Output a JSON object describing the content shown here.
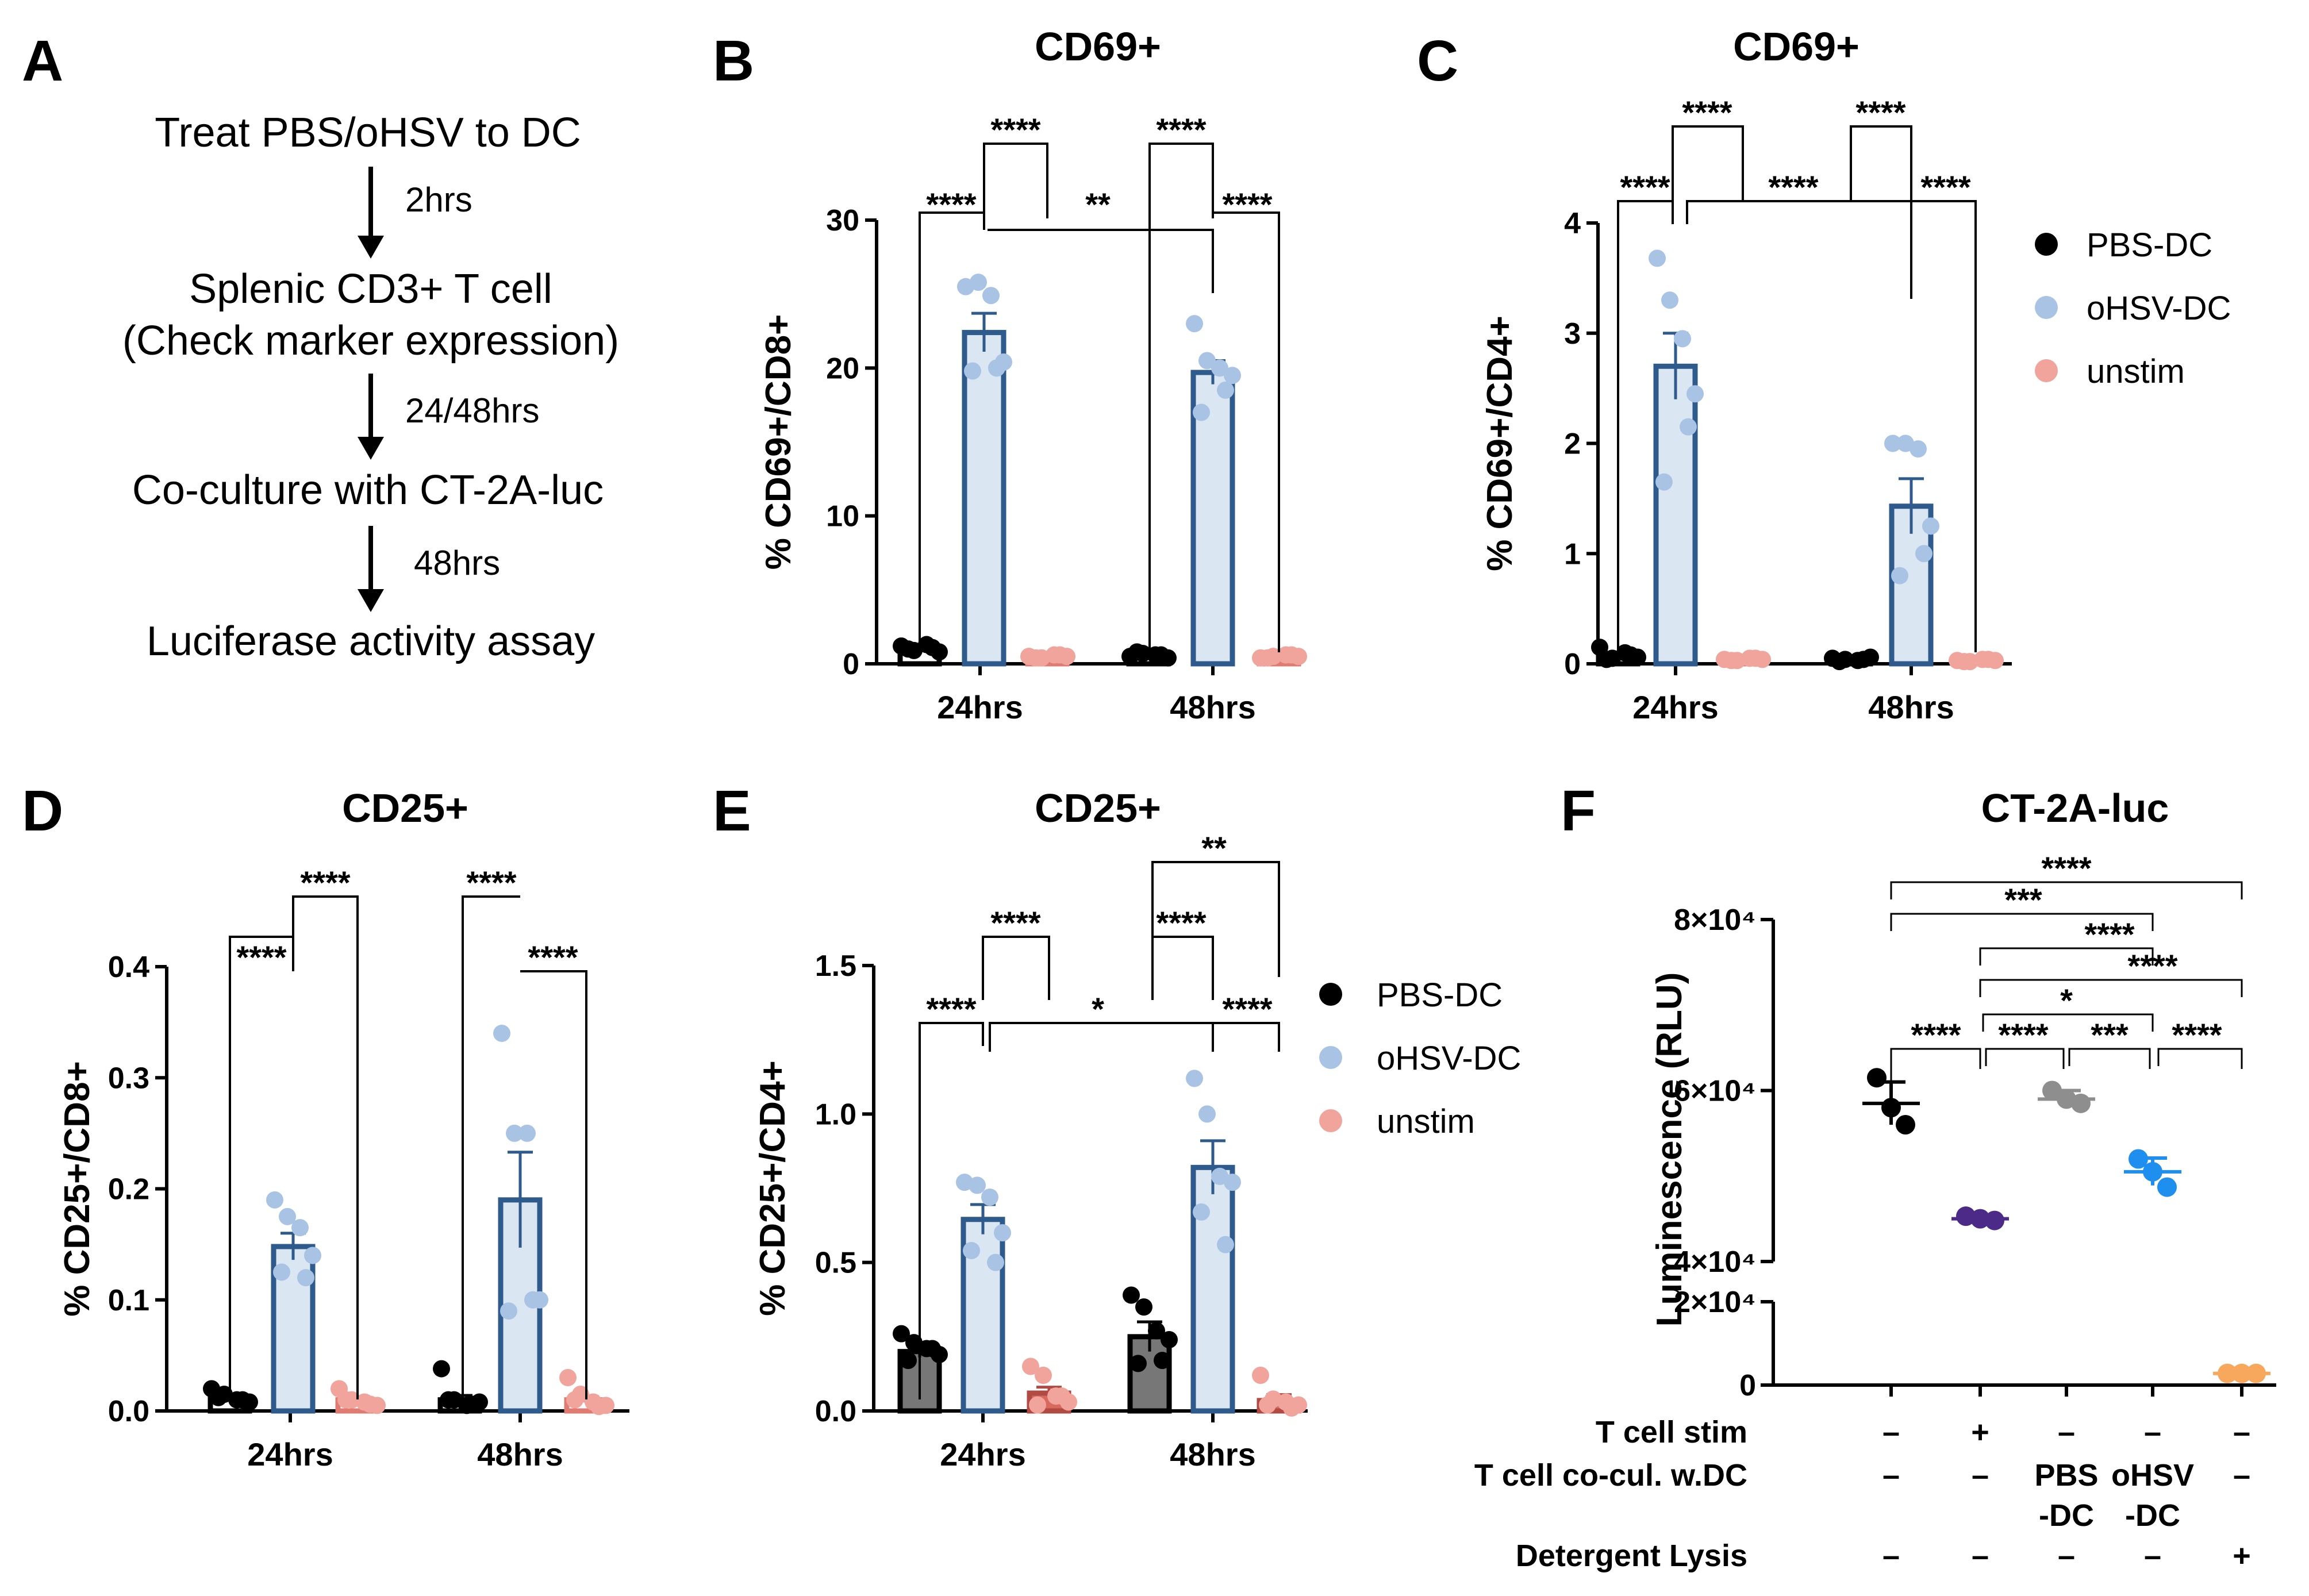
{
  "panel_a": {
    "label": "A",
    "steps": [
      "Treat PBS/oHSV to DC",
      "Splenic CD3+ T cell",
      "(Check marker expression)",
      "Co-culture with CT-2A-luc",
      "Luciferase activity assay"
    ],
    "arrows": [
      "2hrs",
      "24/48hrs",
      "48hrs"
    ]
  },
  "legend": {
    "items": [
      {
        "label": "PBS-DC",
        "color": "#000000"
      },
      {
        "label": "oHSV-DC",
        "color": "#a9c3e4"
      },
      {
        "label": "unstim",
        "color": "#f0a49c"
      }
    ]
  },
  "chart_data": [
    {
      "id": "B",
      "type": "bar",
      "title": "CD69+",
      "ylabel": "% CD69+/CD8+",
      "ylim": [
        0,
        30
      ],
      "yticks": [
        "0",
        "10",
        "20",
        "30"
      ],
      "categories": [
        "24hrs",
        "48hrs"
      ],
      "series": [
        {
          "name": "PBS-DC",
          "values": [
            1.0,
            0.6
          ],
          "sem": [
            0.1,
            0.1
          ]
        },
        {
          "name": "oHSV-DC",
          "values": [
            22.4,
            19.7
          ],
          "sem": [
            1.3,
            0.8
          ]
        },
        {
          "name": "unstim",
          "values": [
            0.5,
            0.5
          ],
          "sem": [
            0.05,
            0.05
          ]
        }
      ],
      "points": [
        [
          [
            1.2,
            0.9,
            1.3,
            0.8,
            1.0,
            1.1
          ],
          [
            0.5,
            0.7,
            0.6,
            0.4,
            0.8,
            0.6
          ]
        ],
        [
          [
            25.5,
            25.8,
            24.9,
            20.4,
            19.8,
            20.0
          ],
          [
            23.0,
            20.5,
            20.0,
            19.5,
            17.0,
            18.5
          ]
        ],
        [
          [
            0.5,
            0.4,
            0.6,
            0.5,
            0.4,
            0.6
          ],
          [
            0.4,
            0.5,
            0.6,
            0.5,
            0.4,
            0.6
          ]
        ]
      ],
      "brackets": [
        "****",
        "****",
        "**",
        "****",
        "****"
      ]
    },
    {
      "id": "C",
      "type": "bar",
      "title": "CD69+",
      "ylabel": "% CD69+/CD4+",
      "ylim": [
        0,
        4
      ],
      "yticks": [
        "0",
        "1",
        "2",
        "3",
        "4"
      ],
      "categories": [
        "24hrs",
        "48hrs"
      ],
      "series": [
        {
          "name": "PBS-DC",
          "values": [
            0.08,
            0.04
          ],
          "sem": [
            0.02,
            0.01
          ]
        },
        {
          "name": "oHSV-DC",
          "values": [
            2.7,
            1.43
          ],
          "sem": [
            0.3,
            0.25
          ]
        },
        {
          "name": "unstim",
          "values": [
            0.04,
            0.03
          ],
          "sem": [
            0.01,
            0.01
          ]
        }
      ],
      "points": [
        [
          [
            0.15,
            0.05,
            0.1,
            0.06,
            0.04,
            0.08
          ],
          [
            0.05,
            0.04,
            0.03,
            0.06,
            0.02,
            0.04
          ]
        ],
        [
          [
            3.68,
            3.3,
            2.95,
            2.45,
            1.65,
            2.15
          ],
          [
            2.0,
            2.0,
            1.95,
            1.25,
            0.8,
            1.0
          ]
        ],
        [
          [
            0.04,
            0.03,
            0.05,
            0.04,
            0.03,
            0.05
          ],
          [
            0.03,
            0.02,
            0.04,
            0.03,
            0.02,
            0.04
          ]
        ]
      ],
      "brackets": [
        "****",
        "****",
        "****",
        "****",
        "****"
      ]
    },
    {
      "id": "D",
      "type": "bar",
      "title": "CD25+",
      "ylabel": "% CD25+/CD8+",
      "ylim": [
        0,
        0.4
      ],
      "yticks": [
        "0.0",
        "0.1",
        "0.2",
        "0.3",
        "0.4"
      ],
      "categories": [
        "24hrs",
        "48hrs"
      ],
      "series": [
        {
          "name": "PBS-DC",
          "values": [
            0.012,
            0.01
          ],
          "sem": [
            0.002,
            0.004
          ]
        },
        {
          "name": "oHSV-DC",
          "values": [
            0.148,
            0.19
          ],
          "sem": [
            0.012,
            0.043
          ]
        },
        {
          "name": "unstim",
          "values": [
            0.01,
            0.01
          ],
          "sem": [
            0.003,
            0.003
          ]
        }
      ],
      "points": [
        [
          [
            0.02,
            0.015,
            0.01,
            0.008,
            0.012,
            0.01
          ],
          [
            0.038,
            0.01,
            0.005,
            0.008,
            0.01,
            0.006
          ]
        ],
        [
          [
            0.19,
            0.175,
            0.165,
            0.14,
            0.125,
            0.12
          ],
          [
            0.34,
            0.25,
            0.25,
            0.1,
            0.09,
            0.1
          ]
        ],
        [
          [
            0.02,
            0.01,
            0.008,
            0.005,
            0.01,
            0.006
          ],
          [
            0.03,
            0.015,
            0.008,
            0.005,
            0.01,
            0.004
          ]
        ]
      ],
      "brackets": [
        "****",
        "****",
        "****",
        "****"
      ]
    },
    {
      "id": "E",
      "type": "bar",
      "title": "CD25+",
      "ylabel": "% CD25+/CD4+",
      "ylim": [
        0,
        1.5
      ],
      "yticks": [
        "0.0",
        "0.5",
        "1.0",
        "1.5"
      ],
      "categories": [
        "24hrs",
        "48hrs"
      ],
      "series": [
        {
          "name": "PBS-DC",
          "values": [
            0.2,
            0.25
          ],
          "sem": [
            0.02,
            0.05
          ]
        },
        {
          "name": "oHSV-DC",
          "values": [
            0.645,
            0.82
          ],
          "sem": [
            0.05,
            0.09
          ]
        },
        {
          "name": "unstim",
          "values": [
            0.06,
            0.035
          ],
          "sem": [
            0.02,
            0.02
          ]
        }
      ],
      "points": [
        [
          [
            0.26,
            0.23,
            0.21,
            0.19,
            0.17,
            0.21
          ],
          [
            0.39,
            0.35,
            0.27,
            0.24,
            0.16,
            0.17
          ]
        ],
        [
          [
            0.77,
            0.76,
            0.72,
            0.6,
            0.54,
            0.5
          ],
          [
            1.12,
            1.0,
            0.79,
            0.77,
            0.67,
            0.56
          ]
        ],
        [
          [
            0.15,
            0.12,
            0.05,
            0.03,
            0.02,
            0.05
          ],
          [
            0.12,
            0.04,
            0.03,
            0.02,
            0.02,
            0.01
          ]
        ]
      ],
      "brackets": [
        "****",
        "****",
        "*",
        "****",
        "****",
        "**"
      ]
    },
    {
      "id": "F",
      "type": "scatter",
      "title": "CT-2A-luc",
      "ylabel": "Luminescence (RLU)",
      "ylim": [
        0,
        80000
      ],
      "yticks": [
        "8×10⁴",
        "6×10⁴",
        "4×10⁴",
        "2×10⁴",
        "0"
      ],
      "groups": [
        {
          "mean": 58500,
          "sem": 2500,
          "points": [
            61500,
            58000,
            56000
          ],
          "color": "#000000"
        },
        {
          "mean": 45000,
          "sem": 300,
          "points": [
            45300,
            45000,
            44800
          ],
          "color": "#4b2a88"
        },
        {
          "mean": 59000,
          "sem": 1000,
          "points": [
            60000,
            59000,
            58500
          ],
          "color": "#8e8e8e"
        },
        {
          "mean": 50500,
          "sem": 1600,
          "points": [
            52000,
            50500,
            48700
          ],
          "color": "#1f8fef"
        },
        {
          "mean": 2800,
          "sem": 100,
          "points": [
            2800,
            2800,
            2800
          ],
          "color": "#f7a85c"
        }
      ],
      "brackets": [
        "****",
        "***",
        "****",
        "****",
        "*",
        "****",
        "****",
        "***",
        "****"
      ],
      "rows": [
        {
          "label": "T cell stim",
          "values": [
            "–",
            "+",
            "–",
            "–",
            "–"
          ]
        },
        {
          "label": "T cell co-cul. w.DC",
          "values": [
            "–",
            "–",
            "PBS",
            "oHSV",
            "–"
          ],
          "values2": [
            "",
            "",
            "-DC",
            "-DC",
            ""
          ]
        },
        {
          "label": "Detergent Lysis",
          "values": [
            "–",
            "–",
            "–",
            "–",
            "+"
          ]
        }
      ]
    }
  ]
}
